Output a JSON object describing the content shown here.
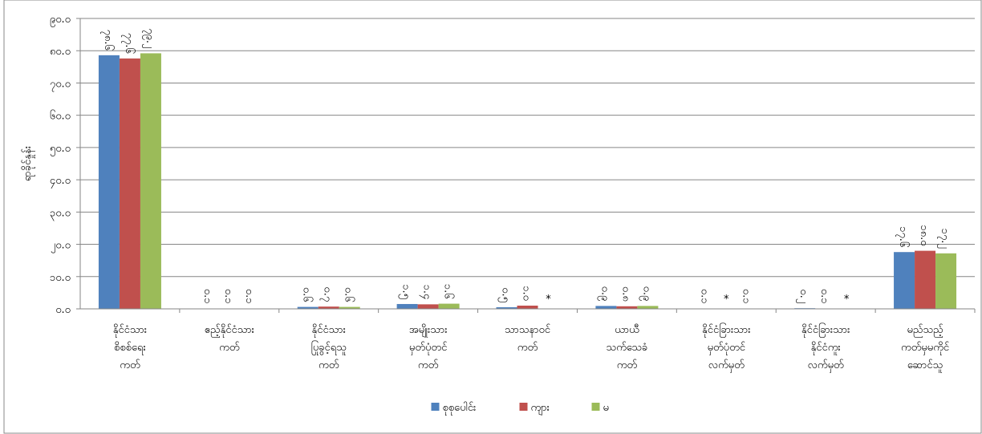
{
  "chart_data": {
    "type": "bar",
    "y_axis_label": "ရာခိုင်နှုန်း",
    "categories": [
      [
        "နိုင်ငံသား",
        "စိစစ်ရေး",
        "ကတ်"
      ],
      [
        "ဧည့်နိုင်ငံသား",
        "ကတ်"
      ],
      [
        "နိုင်ငံသား",
        "ပြုခွင့်ရသူ",
        "ကတ်"
      ],
      [
        "အမျိုးသား",
        "မှတ်ပုံတင်",
        "ကတ်"
      ],
      [
        "သာသနာဝင်",
        "ကတ်"
      ],
      [
        "ယာယီ",
        "သက်သေခံ",
        "ကတ်"
      ],
      [
        "နိုင်ငံခြားသား",
        "မှတ်ပုံတင်",
        "လက်မှတ်"
      ],
      [
        "နိုင်ငံခြားသား",
        "နိုင်ငံကူး",
        "လက်မှတ်"
      ],
      [
        "မည်သည့်",
        "ကတ်မှမကိုင်",
        "ဆောင်သူ"
      ]
    ],
    "series": [
      {
        "name": "စုစုပေါင်း",
        "color": "#4f81bd",
        "values": [
          78.6,
          0.1,
          0.6,
          1.5,
          0.5,
          0.9,
          0.1,
          0.2,
          17.6
        ],
        "value_labels": [
          "၇၈.၆",
          "၀.၁",
          "၀.၆",
          "၁.၅",
          "၀.၅",
          "၀.၉",
          "၀.၁",
          "၀.၂",
          "၁၇.၆"
        ]
      },
      {
        "name": "ကျား",
        "color": "#c0504d",
        "values": [
          77.6,
          0.1,
          0.7,
          1.4,
          1.0,
          0.8,
          null,
          0.1,
          18.0
        ],
        "value_labels": [
          "၇၇.၆",
          "၀.၁",
          "၀.၇",
          "၁.၄",
          "၁.၀",
          "၀.၈",
          "*",
          "၀.၁",
          "၁၈.၀"
        ]
      },
      {
        "name": "မ",
        "color": "#9bbb59",
        "values": [
          79.2,
          0.1,
          0.6,
          1.6,
          null,
          0.9,
          0.1,
          null,
          17.2
        ],
        "value_labels": [
          "၇၉.၂",
          "၀.၁",
          "၀.၆",
          "၁.၆",
          "*",
          "၀.၉",
          "၀.၁",
          "*",
          "၁၇.၂"
        ]
      }
    ],
    "ylim": [
      0,
      90
    ],
    "yticks": [
      {
        "value": 0,
        "label": "၀.၀"
      },
      {
        "value": 10,
        "label": "၁၀.၀"
      },
      {
        "value": 20,
        "label": "၂၀.၀"
      },
      {
        "value": 30,
        "label": "၃၀.၀"
      },
      {
        "value": 40,
        "label": "၄၀.၀"
      },
      {
        "value": 50,
        "label": "၅၀.၀"
      },
      {
        "value": 60,
        "label": "၆၀.၀"
      },
      {
        "value": 70,
        "label": "၇၀.၀"
      },
      {
        "value": 80,
        "label": "၈၀.၀"
      },
      {
        "value": 90,
        "label": "၉၀.၀"
      }
    ],
    "grid": true,
    "legend": "bottom"
  }
}
